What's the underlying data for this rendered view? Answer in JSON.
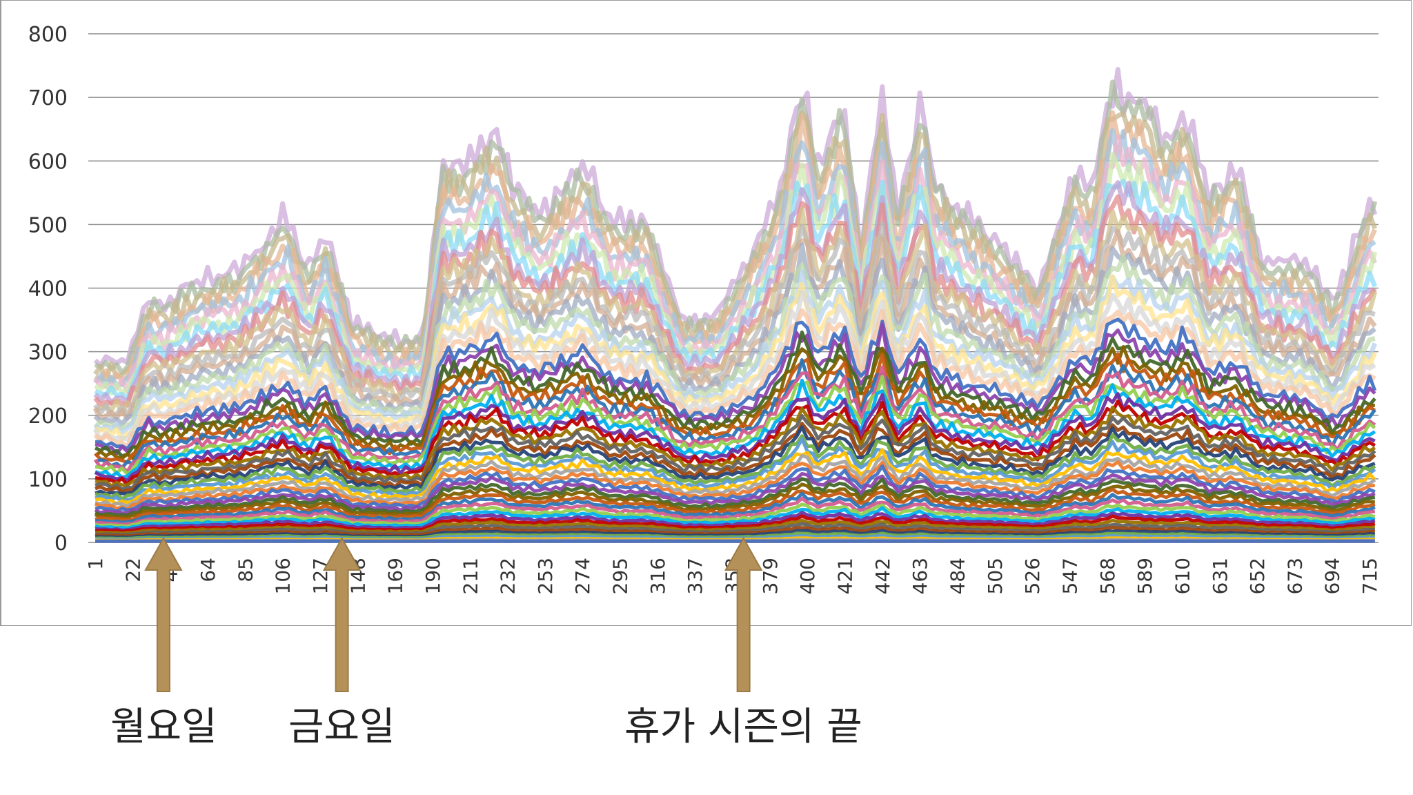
{
  "chart_data": {
    "type": "line",
    "title": "",
    "xlabel": "",
    "ylabel": "",
    "ylim": [
      0,
      800
    ],
    "xlim": [
      1,
      720
    ],
    "y_ticks": [
      "0",
      "100",
      "200",
      "300",
      "400",
      "500",
      "600",
      "700",
      "800"
    ],
    "x_tick_labels": [
      "1",
      "22",
      "43",
      "64",
      "85",
      "106",
      "127",
      "148",
      "169",
      "190",
      "211",
      "232",
      "253",
      "274",
      "295",
      "316",
      "337",
      "358",
      "379",
      "400",
      "421",
      "442",
      "463",
      "484",
      "505",
      "526",
      "547",
      "568",
      "589",
      "610",
      "631",
      "652",
      "673",
      "694",
      "715"
    ],
    "grid": "horizontal",
    "legend": "none",
    "series_count_estimate": 60,
    "envelope": {
      "x": [
        1,
        20,
        30,
        40,
        60,
        80,
        108,
        120,
        130,
        145,
        170,
        185,
        195,
        210,
        225,
        235,
        250,
        275,
        290,
        310,
        330,
        350,
        370,
        385,
        398,
        405,
        420,
        430,
        442,
        450,
        465,
        470,
        490,
        510,
        530,
        550,
        560,
        570,
        590,
        600,
        612,
        625,
        640,
        655,
        680,
        695,
        715
      ],
      "max": [
        285,
        290,
        385,
        380,
        420,
        430,
        520,
        430,
        490,
        350,
        320,
        330,
        600,
        600,
        660,
        570,
        520,
        600,
        510,
        510,
        350,
        360,
        470,
        560,
        740,
        590,
        700,
        470,
        710,
        520,
        715,
        580,
        520,
        470,
        400,
        590,
        560,
        730,
        700,
        640,
        680,
        550,
        600,
        450,
        440,
        380,
        540
      ],
      "median": [
        150,
        140,
        180,
        175,
        190,
        195,
        230,
        200,
        225,
        170,
        160,
        165,
        270,
        280,
        300,
        260,
        250,
        280,
        240,
        240,
        190,
        190,
        210,
        260,
        330,
        270,
        310,
        240,
        320,
        240,
        300,
        250,
        230,
        220,
        200,
        270,
        260,
        320,
        290,
        280,
        300,
        250,
        260,
        220,
        210,
        180,
        230
      ]
    },
    "annotations": [
      {
        "label": "월요일",
        "x": 40
      },
      {
        "label": "금요일",
        "x": 140
      },
      {
        "label": "휴가 시즌의 끝",
        "x": 365
      }
    ],
    "colors": {
      "arrow": "#b5915a",
      "gridline": "#8c8c8c",
      "palette": [
        "#4472c4",
        "#ed7d31",
        "#a5a5a5",
        "#ffc000",
        "#5b9bd5",
        "#70ad47",
        "#264478",
        "#9e480e",
        "#636363",
        "#997300",
        "#c00000",
        "#7030a0",
        "#00b0f0",
        "#92d050",
        "#d35d8e",
        "#2e75b6",
        "#c55a11",
        "#7f6000",
        "#43682b",
        "#8e44ad"
      ]
    }
  }
}
